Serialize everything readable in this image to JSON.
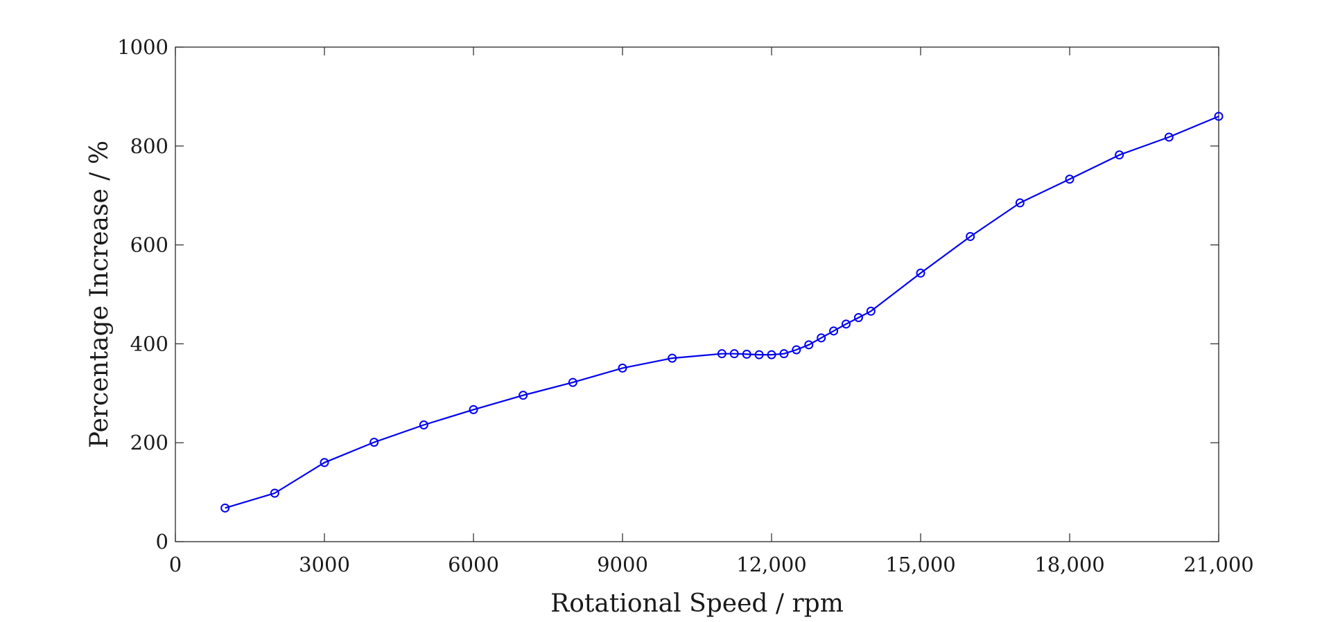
{
  "chart_data": {
    "type": "line",
    "title": "",
    "xlabel": "Rotational Speed / rpm",
    "ylabel": "Percentage Increase / %",
    "xlim": [
      0,
      21000
    ],
    "ylim": [
      0,
      1000
    ],
    "x_ticks": [
      0,
      3000,
      6000,
      9000,
      12000,
      15000,
      18000,
      21000
    ],
    "x_tick_labels": [
      "0",
      "3000",
      "6000",
      "9000",
      "12,000",
      "15,000",
      "18,000",
      "21,000"
    ],
    "y_ticks": [
      0,
      200,
      400,
      600,
      800,
      1000
    ],
    "y_tick_labels": [
      "0",
      "200",
      "400",
      "600",
      "800",
      "1000"
    ],
    "grid": false,
    "legend": "none",
    "series": [
      {
        "color": "#0000ee",
        "marker": "circle",
        "points": [
          {
            "x": 1000,
            "y": 68
          },
          {
            "x": 2000,
            "y": 98
          },
          {
            "x": 3000,
            "y": 160
          },
          {
            "x": 4000,
            "y": 201
          },
          {
            "x": 5000,
            "y": 236
          },
          {
            "x": 6000,
            "y": 267
          },
          {
            "x": 7000,
            "y": 296
          },
          {
            "x": 8000,
            "y": 322
          },
          {
            "x": 9000,
            "y": 351
          },
          {
            "x": 10000,
            "y": 371
          },
          {
            "x": 11000,
            "y": 380
          },
          {
            "x": 11250,
            "y": 380
          },
          {
            "x": 11500,
            "y": 379
          },
          {
            "x": 11750,
            "y": 378
          },
          {
            "x": 12000,
            "y": 378
          },
          {
            "x": 12250,
            "y": 380
          },
          {
            "x": 12500,
            "y": 388
          },
          {
            "x": 12750,
            "y": 398
          },
          {
            "x": 13000,
            "y": 412
          },
          {
            "x": 13250,
            "y": 426
          },
          {
            "x": 13500,
            "y": 440
          },
          {
            "x": 13750,
            "y": 453
          },
          {
            "x": 14000,
            "y": 466
          },
          {
            "x": 15000,
            "y": 543
          },
          {
            "x": 16000,
            "y": 617
          },
          {
            "x": 17000,
            "y": 685
          },
          {
            "x": 18000,
            "y": 733
          },
          {
            "x": 19000,
            "y": 782
          },
          {
            "x": 20000,
            "y": 818
          },
          {
            "x": 21000,
            "y": 860
          }
        ]
      }
    ]
  }
}
